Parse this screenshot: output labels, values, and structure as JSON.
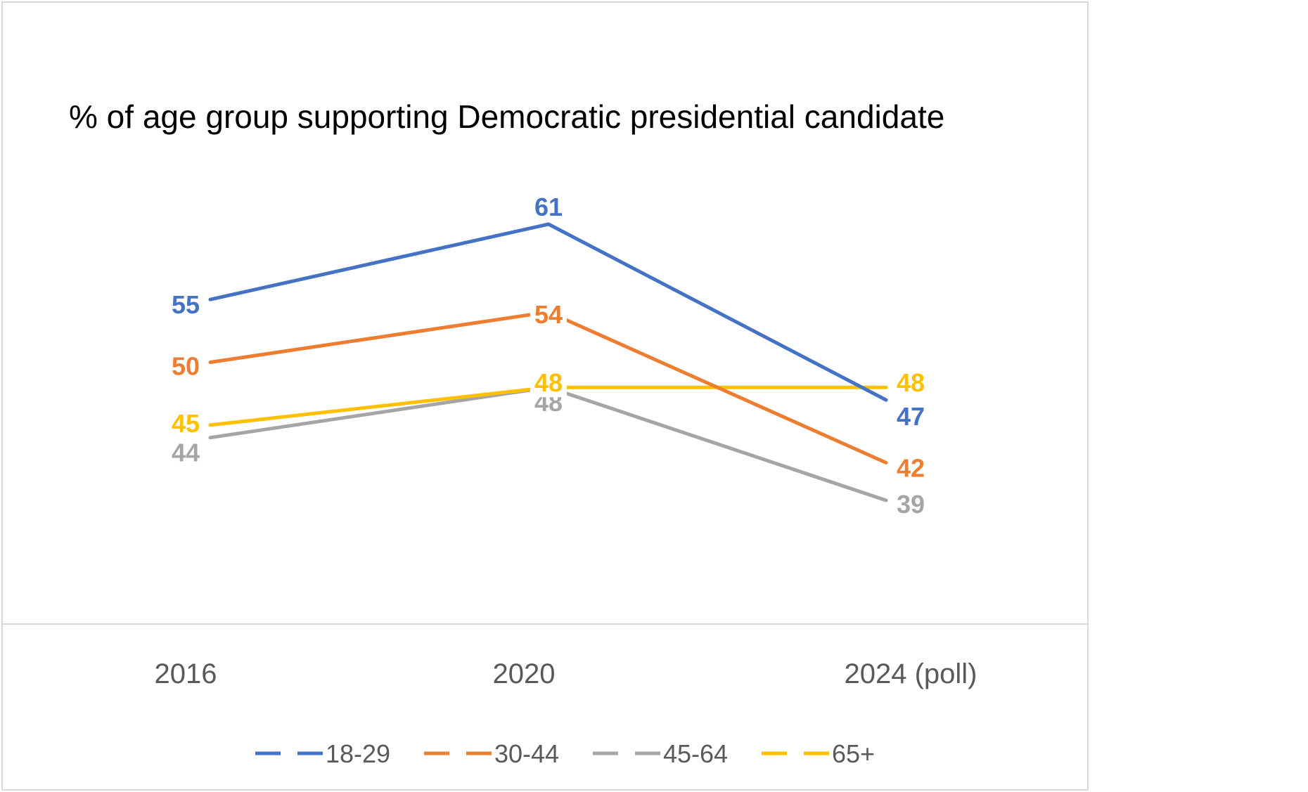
{
  "chart_data": {
    "type": "line",
    "title": "% of age group supporting Democratic presidential candidate",
    "categories": [
      "2016",
      "2020",
      "2024 (poll)"
    ],
    "series": [
      {
        "name": "18-29",
        "values": [
          55,
          61,
          47
        ],
        "color": "#4472C4"
      },
      {
        "name": "30-44",
        "values": [
          50,
          54,
          42
        ],
        "color": "#ED7D31"
      },
      {
        "name": "45-64",
        "values": [
          44,
          48,
          39
        ],
        "color": "#A5A5A5"
      },
      {
        "name": "65+",
        "values": [
          45,
          48,
          48
        ],
        "color": "#FFC000"
      }
    ],
    "ylim": [
      30,
      70
    ],
    "grid": false,
    "legend_position": "bottom",
    "data_labels": true
  }
}
